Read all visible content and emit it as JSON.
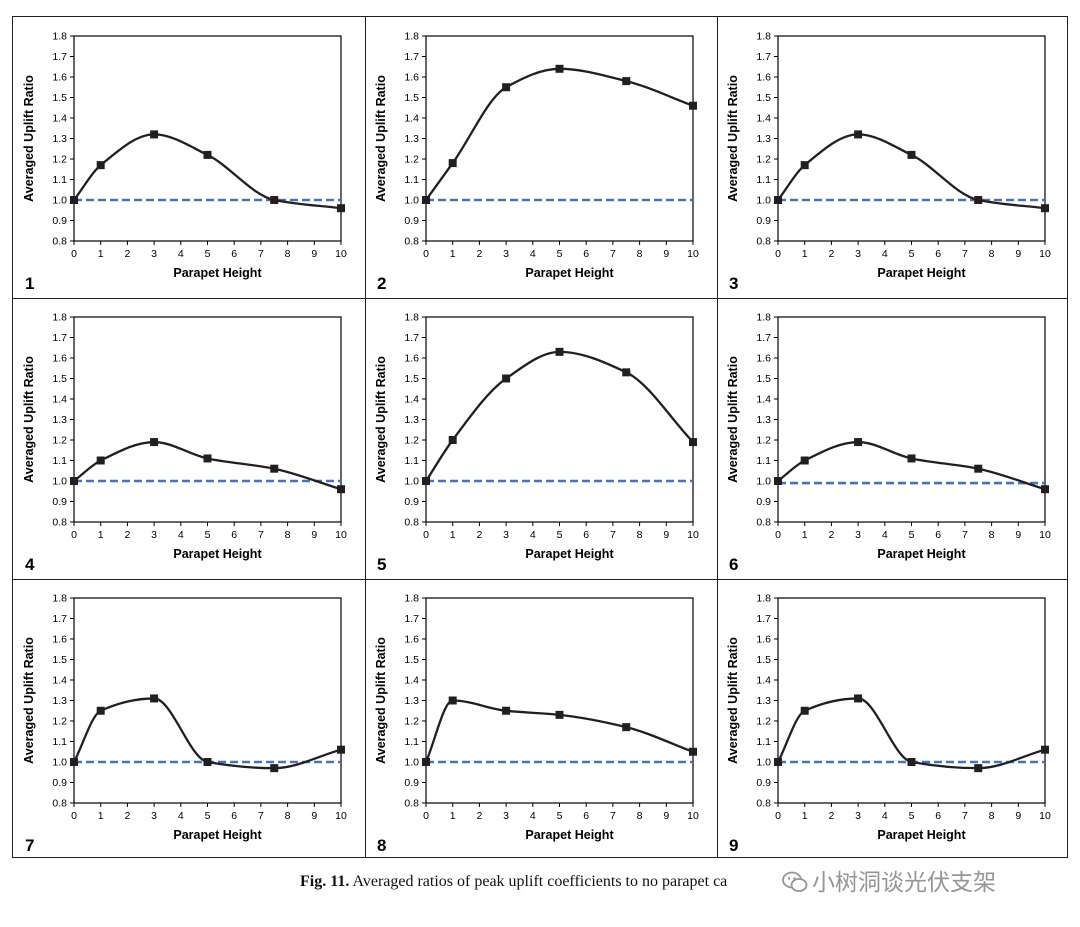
{
  "caption": {
    "label": "Fig. 11.",
    "text": "Averaged ratios of peak uplift coefficients to no parapet ca"
  },
  "watermark": {
    "text": "小树洞谈光伏支架",
    "icon": "wechat-logo-icon"
  },
  "colors": {
    "curve": "#231f20",
    "baseline": "#4472c4",
    "axis": "#000000"
  },
  "chart_data": [
    {
      "panel_label": "1",
      "type": "line",
      "xlabel": "Parapet Height",
      "ylabel": "Averaged Uplift Ratio",
      "xlim": [
        0,
        10
      ],
      "ylim": [
        0.8,
        1.8
      ],
      "xticks": [
        0,
        1,
        2,
        3,
        4,
        5,
        6,
        7,
        8,
        9,
        10
      ],
      "yticks": [
        0.8,
        0.9,
        1.0,
        1.1,
        1.2,
        1.3,
        1.4,
        1.5,
        1.6,
        1.7,
        1.8
      ],
      "grid": false,
      "reference_line": 1.0,
      "x": [
        0,
        1,
        3,
        5,
        7.5,
        10
      ],
      "y": [
        1.0,
        1.17,
        1.32,
        1.22,
        1.0,
        0.96
      ]
    },
    {
      "panel_label": "2",
      "type": "line",
      "xlabel": "Parapet Height",
      "ylabel": "Averaged Uplift Ratio",
      "xlim": [
        0,
        10
      ],
      "ylim": [
        0.8,
        1.8
      ],
      "xticks": [
        0,
        1,
        2,
        3,
        4,
        5,
        6,
        7,
        8,
        9,
        10
      ],
      "yticks": [
        0.8,
        0.9,
        1.0,
        1.1,
        1.2,
        1.3,
        1.4,
        1.5,
        1.6,
        1.7,
        1.8
      ],
      "grid": false,
      "reference_line": 1.0,
      "x": [
        0,
        1,
        3,
        5,
        7.5,
        10
      ],
      "y": [
        1.0,
        1.18,
        1.55,
        1.64,
        1.58,
        1.46
      ]
    },
    {
      "panel_label": "3",
      "type": "line",
      "xlabel": "Parapet Height",
      "ylabel": "Averaged Uplift Ratio",
      "xlim": [
        0,
        10
      ],
      "ylim": [
        0.8,
        1.8
      ],
      "xticks": [
        0,
        1,
        2,
        3,
        4,
        5,
        6,
        7,
        8,
        9,
        10
      ],
      "yticks": [
        0.8,
        0.9,
        1.0,
        1.1,
        1.2,
        1.3,
        1.4,
        1.5,
        1.6,
        1.7,
        1.8
      ],
      "grid": false,
      "reference_line": 1.0,
      "x": [
        0,
        1,
        3,
        5,
        7.5,
        10
      ],
      "y": [
        1.0,
        1.17,
        1.32,
        1.22,
        1.0,
        0.96
      ]
    },
    {
      "panel_label": "4",
      "type": "line",
      "xlabel": "Parapet Height",
      "ylabel": "Averaged Uplift Ratio",
      "xlim": [
        0,
        10
      ],
      "ylim": [
        0.8,
        1.8
      ],
      "xticks": [
        0,
        1,
        2,
        3,
        4,
        5,
        6,
        7,
        8,
        9,
        10
      ],
      "yticks": [
        0.8,
        0.9,
        1.0,
        1.1,
        1.2,
        1.3,
        1.4,
        1.5,
        1.6,
        1.7,
        1.8
      ],
      "grid": false,
      "reference_line": 1.0,
      "x": [
        0,
        1,
        3,
        5,
        7.5,
        10
      ],
      "y": [
        1.0,
        1.1,
        1.19,
        1.11,
        1.06,
        0.96
      ]
    },
    {
      "panel_label": "5",
      "type": "line",
      "xlabel": "Parapet Height",
      "ylabel": "Averaged Uplift Ratio",
      "xlim": [
        0,
        10
      ],
      "ylim": [
        0.8,
        1.8
      ],
      "xticks": [
        0,
        1,
        2,
        3,
        4,
        5,
        6,
        7,
        8,
        9,
        10
      ],
      "yticks": [
        0.8,
        0.9,
        1.0,
        1.1,
        1.2,
        1.3,
        1.4,
        1.5,
        1.6,
        1.7,
        1.8
      ],
      "grid": false,
      "reference_line": 1.0,
      "x": [
        0,
        1,
        3,
        5,
        7.5,
        10
      ],
      "y": [
        1.0,
        1.2,
        1.5,
        1.63,
        1.53,
        1.19
      ]
    },
    {
      "panel_label": "6",
      "type": "line",
      "xlabel": "Parapet Height",
      "ylabel": "Averaged Uplift Ratio",
      "xlim": [
        0,
        10
      ],
      "ylim": [
        0.8,
        1.8
      ],
      "xticks": [
        0,
        1,
        2,
        3,
        4,
        5,
        6,
        7,
        8,
        9,
        10
      ],
      "yticks": [
        0.8,
        0.9,
        1.0,
        1.1,
        1.2,
        1.3,
        1.4,
        1.5,
        1.6,
        1.7,
        1.8
      ],
      "grid": false,
      "reference_line": 0.99,
      "x": [
        0,
        1,
        3,
        5,
        7.5,
        10
      ],
      "y": [
        1.0,
        1.1,
        1.19,
        1.11,
        1.06,
        0.96
      ]
    },
    {
      "panel_label": "7",
      "type": "line",
      "xlabel": "Parapet Height",
      "ylabel": "Averaged Uplift Ratio",
      "xlim": [
        0,
        10
      ],
      "ylim": [
        0.8,
        1.8
      ],
      "xticks": [
        0,
        1,
        2,
        3,
        4,
        5,
        6,
        7,
        8,
        9,
        10
      ],
      "yticks": [
        0.8,
        0.9,
        1.0,
        1.1,
        1.2,
        1.3,
        1.4,
        1.5,
        1.6,
        1.7,
        1.8
      ],
      "grid": false,
      "reference_line": 1.0,
      "x": [
        0,
        1,
        3,
        5,
        7.5,
        10
      ],
      "y": [
        1.0,
        1.25,
        1.31,
        1.0,
        0.97,
        1.06
      ]
    },
    {
      "panel_label": "8",
      "type": "line",
      "xlabel": "Parapet Height",
      "ylabel": "Averaged Uplift Ratio",
      "xlim": [
        0,
        10
      ],
      "ylim": [
        0.8,
        1.8
      ],
      "xticks": [
        0,
        1,
        2,
        3,
        4,
        5,
        6,
        7,
        8,
        9,
        10
      ],
      "yticks": [
        0.8,
        0.9,
        1.0,
        1.1,
        1.2,
        1.3,
        1.4,
        1.5,
        1.6,
        1.7,
        1.8
      ],
      "grid": false,
      "reference_line": 1.0,
      "x": [
        0,
        1,
        3,
        5,
        7.5,
        10
      ],
      "y": [
        1.0,
        1.3,
        1.25,
        1.23,
        1.17,
        1.05
      ]
    },
    {
      "panel_label": "9",
      "type": "line",
      "xlabel": "Parapet Height",
      "ylabel": "Averaged Uplift Ratio",
      "xlim": [
        0,
        10
      ],
      "ylim": [
        0.8,
        1.8
      ],
      "xticks": [
        0,
        1,
        2,
        3,
        4,
        5,
        6,
        7,
        8,
        9,
        10
      ],
      "yticks": [
        0.8,
        0.9,
        1.0,
        1.1,
        1.2,
        1.3,
        1.4,
        1.5,
        1.6,
        1.7,
        1.8
      ],
      "grid": false,
      "reference_line": 1.0,
      "x": [
        0,
        1,
        3,
        5,
        7.5,
        10
      ],
      "y": [
        1.0,
        1.25,
        1.31,
        1.0,
        0.97,
        1.06
      ]
    }
  ]
}
